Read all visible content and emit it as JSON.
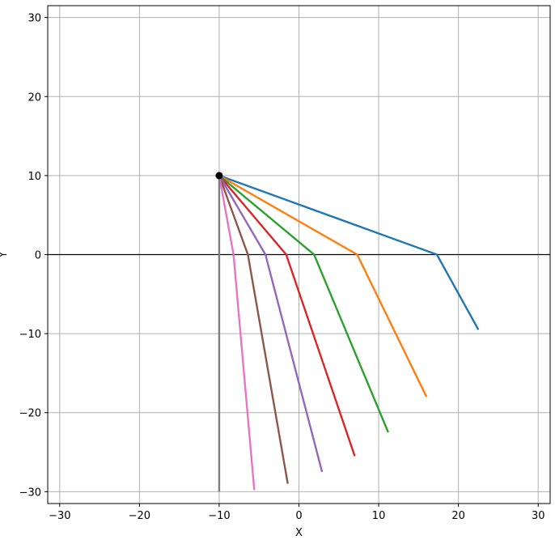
{
  "chart_data": {
    "type": "line",
    "title": "",
    "xlabel": "X",
    "ylabel": "Y",
    "xlim": [
      -31.5,
      31.5
    ],
    "ylim": [
      -31.5,
      31.5
    ],
    "xticks": [
      -30,
      -20,
      -10,
      0,
      10,
      20,
      30
    ],
    "yticks": [
      -30,
      -20,
      -10,
      0,
      10,
      20,
      30
    ],
    "xtick_labels": [
      "−30",
      "−20",
      "−10",
      "0",
      "10",
      "20",
      "30"
    ],
    "ytick_labels": [
      "−30",
      "−20",
      "−10",
      "0",
      "10",
      "20",
      "30"
    ],
    "grid": true,
    "legend": false,
    "interface_line_y": 0,
    "source_point": {
      "x": -10,
      "y": 10
    },
    "series": [
      {
        "color": "#1f77b4",
        "points": [
          [
            -10,
            10
          ],
          [
            17.3,
            0
          ],
          [
            22.5,
            -9.5
          ]
        ]
      },
      {
        "color": "#ff7f0e",
        "points": [
          [
            -10,
            10
          ],
          [
            7.3,
            0
          ],
          [
            16.0,
            -18.0
          ]
        ]
      },
      {
        "color": "#2ca02c",
        "points": [
          [
            -10,
            10
          ],
          [
            1.9,
            0
          ],
          [
            11.2,
            -22.5
          ]
        ]
      },
      {
        "color": "#d62728",
        "points": [
          [
            -10,
            10
          ],
          [
            -1.6,
            0
          ],
          [
            7.0,
            -25.5
          ]
        ]
      },
      {
        "color": "#9467bd",
        "points": [
          [
            -10,
            10
          ],
          [
            -4.2,
            0
          ],
          [
            2.9,
            -27.5
          ]
        ]
      },
      {
        "color": "#8c564b",
        "points": [
          [
            -10,
            10
          ],
          [
            -6.4,
            0
          ],
          [
            -1.4,
            -29.0
          ]
        ]
      },
      {
        "color": "#e377c2",
        "points": [
          [
            -10,
            10
          ],
          [
            -8.2,
            0
          ],
          [
            -5.6,
            -29.8
          ]
        ]
      },
      {
        "color": "#7f7f7f",
        "points": [
          [
            -10,
            10
          ],
          [
            -10.0,
            0
          ],
          [
            -10.0,
            -30.0
          ]
        ]
      }
    ]
  }
}
